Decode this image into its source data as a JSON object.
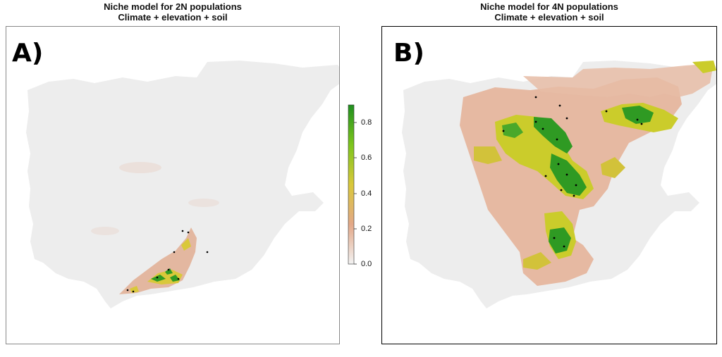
{
  "panels": [
    {
      "letter": "A)",
      "title_line1": "Niche model for 2N populations",
      "title_line2": "Climate + elevation + soil"
    },
    {
      "letter": "B)",
      "title_line1": "Niche model for 4N populations",
      "title_line2": "Climate + elevation + soil"
    }
  ],
  "legend": {
    "ticks": [
      "0.8",
      "0.6",
      "0.4",
      "0.2",
      "0.0"
    ],
    "colors": {
      "low": "#f2f2f2",
      "mid_low": "#e3a888",
      "mid": "#d9c83a",
      "high": "#1f8f1f"
    }
  },
  "colors": {
    "land": "#f0f0f0",
    "low_suitability": "#e8b9a0",
    "medium_suitability": "#c8cc2a",
    "high_suitability": "#2f9a23",
    "occurrence_points": "#000000"
  }
}
